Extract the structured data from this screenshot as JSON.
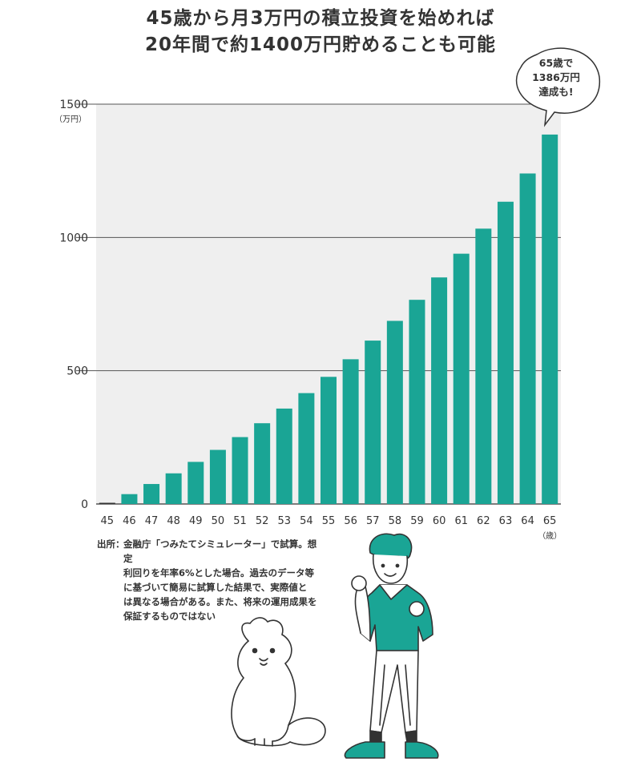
{
  "title": {
    "line1": "45歳から月3万円の積立投資を始めれば",
    "line2": "20年間で約1400万円貯めることも可能"
  },
  "colors": {
    "bar": "#1aa595",
    "plot_bg": "#efefef",
    "grid": "#555555"
  },
  "chart_data": {
    "type": "bar",
    "categories": [
      "45",
      "46",
      "47",
      "48",
      "49",
      "50",
      "51",
      "52",
      "53",
      "54",
      "55",
      "56",
      "57",
      "58",
      "59",
      "60",
      "61",
      "62",
      "63",
      "64",
      "65"
    ],
    "values": [
      0,
      37,
      75,
      115,
      158,
      203,
      251,
      303,
      358,
      416,
      477,
      543,
      613,
      687,
      766,
      850,
      939,
      1033,
      1134,
      1240,
      1386
    ],
    "ylim": [
      0,
      1500
    ],
    "yticks": [
      0,
      500,
      1000,
      1500
    ],
    "yunit": "（万円）",
    "xunit": "（歳）",
    "grid": true,
    "annotation": [
      "65歳で",
      "1386万円",
      "達成も!"
    ]
  },
  "note": {
    "label": "出所：",
    "lines": [
      "金融庁「つみたてシミュレーター」で試算。想定",
      "利回りを年率6%とした場合。過去のデータ等",
      "に基づいて簡易に試算した結果で、実際値と",
      "は異なる場合がある。また、将来の運用成果を",
      "保証するものではない"
    ]
  }
}
